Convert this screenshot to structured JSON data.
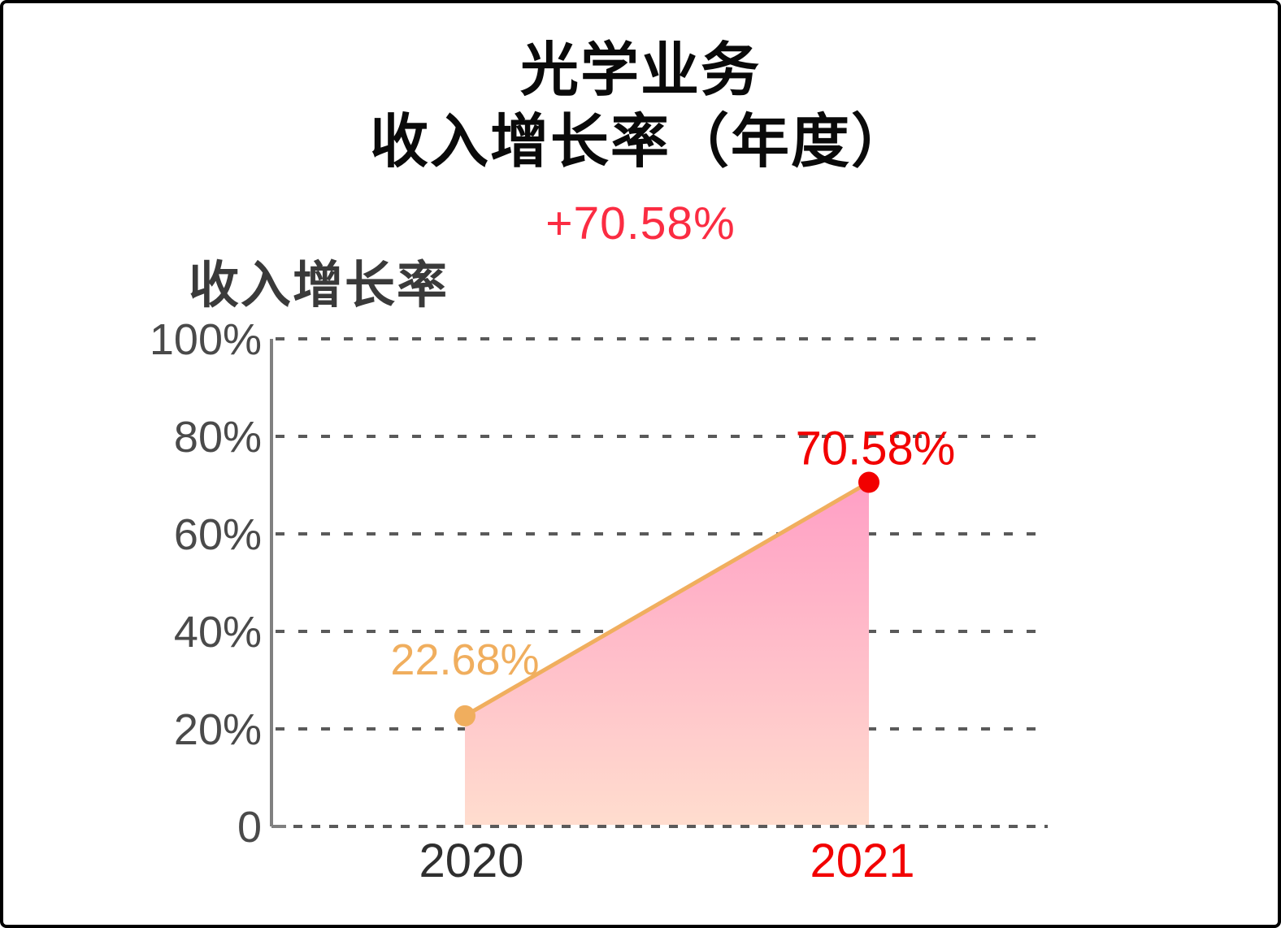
{
  "header": {
    "title_line1": "光学业务",
    "title_line2": "收入增长率（年度）",
    "change_label": "+70.58%"
  },
  "chart": {
    "section_label": "收入增长率"
  },
  "colors": {
    "title_text": "#0a0a0a",
    "change_text": "#fb2c42",
    "section_label_text": "#3a3a3a",
    "gridline": "#5a5a5a",
    "axis_line": "#808080",
    "ytick_text": "#4a4a4a",
    "x2020_text": "#2f2f2f",
    "x2021_text": "#f20000",
    "series_orange": "#f0ae5e",
    "series_red": "#f20000",
    "fill_top": "#ff9fc5",
    "fill_bottom": "#ffddce"
  },
  "chart_data": {
    "type": "area",
    "title": "收入增长率",
    "x": [
      "2020",
      "2021"
    ],
    "values": [
      22.68,
      70.58
    ],
    "point_labels": [
      "22.68%",
      "70.58%"
    ],
    "ylim": [
      0,
      100
    ],
    "yticks": [
      100,
      80,
      60,
      40,
      20,
      0
    ],
    "ytick_labels": [
      "100%",
      "80%",
      "60%",
      "40%",
      "20%",
      "0"
    ],
    "grid": "horizontal-dashed",
    "legend": "none",
    "annotation": "+70.58%"
  }
}
